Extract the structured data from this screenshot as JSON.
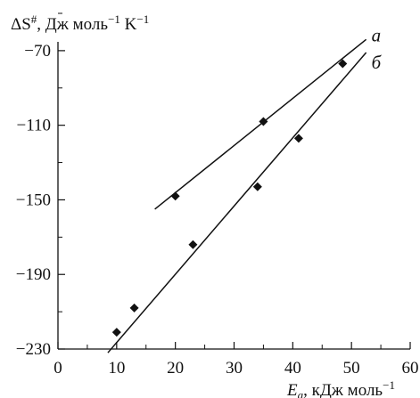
{
  "chart_data": {
    "type": "scatter",
    "title": "",
    "ylabel": "ΔS#, Дж моль−1 K−1",
    "xlabel": "Ea, кДж моль−1",
    "xlim": [
      0,
      60
    ],
    "ylim": [
      -230,
      -50
    ],
    "x_ticks": [
      0,
      10,
      20,
      30,
      40,
      50,
      60
    ],
    "y_ticks": [
      -70,
      -110,
      -150,
      -190,
      -230
    ],
    "grid": false,
    "series": [
      {
        "name": "a",
        "points": [
          {
            "x": 20,
            "y": -148
          },
          {
            "x": 35,
            "y": -108
          },
          {
            "x": 48.5,
            "y": -77
          }
        ],
        "fit_line": {
          "x0": 16.5,
          "y0": -155,
          "x1": 52.5,
          "y1": -64
        }
      },
      {
        "name": "б",
        "points": [
          {
            "x": 10,
            "y": -221
          },
          {
            "x": 13,
            "y": -208
          },
          {
            "x": 23,
            "y": -174
          },
          {
            "x": 34,
            "y": -143
          },
          {
            "x": 41,
            "y": -117
          }
        ],
        "fit_line": {
          "x0": 8.5,
          "y0": -232,
          "x1": 52.5,
          "y1": -71
        }
      }
    ]
  }
}
